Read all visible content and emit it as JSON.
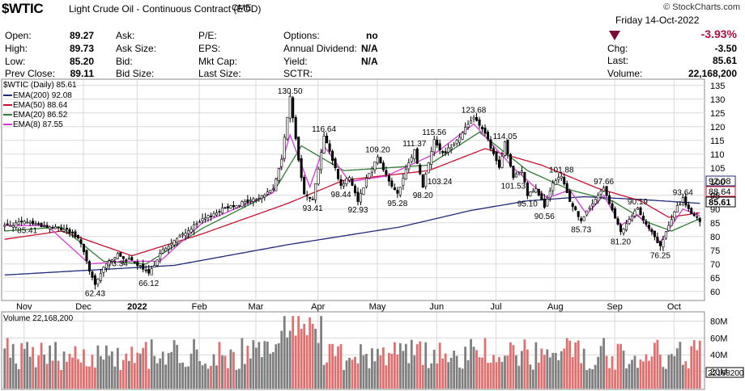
{
  "header": {
    "symbol": "$WTIC",
    "title": "Light Crude Oil - Continuous Contract (EOD)",
    "exchange": "CME",
    "brand": "© StockCharts.com",
    "date": "Friday 14-Oct-2022",
    "change_pct": "-3.93%"
  },
  "quote": {
    "open_label": "Open:",
    "open": "89.27",
    "high_label": "High:",
    "high": "89.73",
    "low_label": "Low:",
    "low": "85.20",
    "prev_label": "Prev Close:",
    "prev": "89.11",
    "ask_label": "Ask:",
    "asksize_label": "Ask Size:",
    "bid_label": "Bid:",
    "bidsize_label": "Bid Size:",
    "pe_label": "P/E:",
    "eps_label": "EPS:",
    "mktcap_label": "Mkt Cap:",
    "lastsize_label": "Last Size:",
    "options_label": "Options:",
    "options": "no",
    "div_label": "Annual Dividend:",
    "div": "N/A",
    "yield_label": "Yield:",
    "yield": "N/A",
    "sctr_label": "SCTR:",
    "chg_label": "Chg:",
    "chg": "-3.50",
    "last_label": "Last:",
    "last": "85.61",
    "volume_label": "Volume:",
    "volume": "22,168,200"
  },
  "legend": {
    "price": "$WTIC (Daily) 85.61",
    "ema200": "EMA(200) 92.08",
    "ema50": "EMA(50) 88.64",
    "ema20": "EMA(20) 86.52",
    "ema8": "EMA(8) 87.55",
    "volume": "Volume 22,168,200"
  },
  "colors": {
    "ema200": "#1f2a7a",
    "ema50": "#c8102e",
    "ema20": "#2e7d32",
    "ema8": "#d63ad6",
    "candle": "#000000",
    "vol_up": "#7f7f7f",
    "vol_down": "#e07070",
    "grid": "#d9d9d9"
  },
  "chart_data": {
    "type": "candlestick",
    "price_axis_ticks": [
      60,
      65,
      70,
      75,
      80,
      85,
      90,
      95,
      100,
      105,
      110,
      115,
      120,
      125,
      130,
      135
    ],
    "ylim": [
      57,
      137
    ],
    "x_tick_labels": [
      "Nov",
      "Dec",
      "2022",
      "Feb",
      "Mar",
      "Apr",
      "May",
      "Jun",
      "Jul",
      "Aug",
      "Sep",
      "Oct"
    ],
    "price_keypoints": [
      [
        0,
        84.0
      ],
      [
        8,
        85.4
      ],
      [
        15,
        83.5
      ],
      [
        22,
        82.5
      ],
      [
        27,
        78.0
      ],
      [
        30,
        67.0
      ],
      [
        32,
        62.43
      ],
      [
        36,
        70.5
      ],
      [
        40,
        73.3
      ],
      [
        45,
        71.0
      ],
      [
        48,
        69.0
      ],
      [
        51,
        66.1
      ],
      [
        55,
        74.0
      ],
      [
        62,
        80.0
      ],
      [
        70,
        86.0
      ],
      [
        78,
        90.5
      ],
      [
        85,
        92.5
      ],
      [
        90,
        94.0
      ],
      [
        95,
        97.5
      ],
      [
        98,
        108.0
      ],
      [
        100,
        124.0
      ],
      [
        101,
        130.5
      ],
      [
        104,
        108.0
      ],
      [
        106,
        96.0
      ],
      [
        109,
        93.4
      ],
      [
        111,
        105.0
      ],
      [
        113,
        116.6
      ],
      [
        116,
        108.0
      ],
      [
        119,
        98.4
      ],
      [
        122,
        102.0
      ],
      [
        125,
        93.0
      ],
      [
        128,
        101.0
      ],
      [
        132,
        109.2
      ],
      [
        136,
        100.0
      ],
      [
        139,
        95.3
      ],
      [
        142,
        104.0
      ],
      [
        145,
        111.4
      ],
      [
        148,
        98.2
      ],
      [
        152,
        115.6
      ],
      [
        155,
        110.0
      ],
      [
        160,
        115.0
      ],
      [
        164,
        121.0
      ],
      [
        166,
        123.7
      ],
      [
        170,
        118.0
      ],
      [
        172,
        112.0
      ],
      [
        175,
        105.0
      ],
      [
        177,
        114.1
      ],
      [
        180,
        101.5
      ],
      [
        183,
        104.0
      ],
      [
        185,
        95.1
      ],
      [
        188,
        98.0
      ],
      [
        191,
        90.6
      ],
      [
        194,
        99.0
      ],
      [
        197,
        101.9
      ],
      [
        200,
        93.0
      ],
      [
        204,
        85.7
      ],
      [
        208,
        92.0
      ],
      [
        212,
        97.7
      ],
      [
        215,
        90.0
      ],
      [
        218,
        81.2
      ],
      [
        221,
        86.0
      ],
      [
        224,
        90.2
      ],
      [
        228,
        83.0
      ],
      [
        232,
        76.3
      ],
      [
        235,
        84.0
      ],
      [
        238,
        91.0
      ],
      [
        240,
        93.6
      ],
      [
        243,
        88.0
      ],
      [
        246,
        85.61
      ]
    ],
    "labeled_points": [
      {
        "label": "85.41",
        "x": 8,
        "y": 85.4
      },
      {
        "label": "62.43",
        "x": 32,
        "y": 62.43
      },
      {
        "label": "73.34",
        "x": 40,
        "y": 73.34
      },
      {
        "label": "66.12",
        "x": 51,
        "y": 66.12
      },
      {
        "label": "130.50",
        "x": 101,
        "y": 130.5
      },
      {
        "label": "93.41",
        "x": 109,
        "y": 93.41
      },
      {
        "label": "116.64",
        "x": 113,
        "y": 116.64
      },
      {
        "label": "98.44",
        "x": 119,
        "y": 98.44
      },
      {
        "label": "92.93",
        "x": 125,
        "y": 92.93
      },
      {
        "label": "109.20",
        "x": 132,
        "y": 109.2
      },
      {
        "label": "95.28",
        "x": 139,
        "y": 95.28
      },
      {
        "label": "111.37",
        "x": 145,
        "y": 111.37
      },
      {
        "label": "98.20",
        "x": 148,
        "y": 98.2
      },
      {
        "label": "115.56",
        "x": 152,
        "y": 115.56
      },
      {
        "label": "103.24",
        "x": 154,
        "y": 103.24
      },
      {
        "label": "123.68",
        "x": 166,
        "y": 123.68
      },
      {
        "label": "114.05",
        "x": 177,
        "y": 114.05
      },
      {
        "label": "101.53",
        "x": 180,
        "y": 101.53
      },
      {
        "label": "95.10",
        "x": 185,
        "y": 95.1
      },
      {
        "label": "90.56",
        "x": 191,
        "y": 90.56
      },
      {
        "label": "101.88",
        "x": 197,
        "y": 101.88
      },
      {
        "label": "85.73",
        "x": 204,
        "y": 85.73
      },
      {
        "label": "97.66",
        "x": 212,
        "y": 97.66
      },
      {
        "label": "81.20",
        "x": 218,
        "y": 81.2
      },
      {
        "label": "90.19",
        "x": 224,
        "y": 90.19
      },
      {
        "label": "76.25",
        "x": 232,
        "y": 76.25
      },
      {
        "label": "93.64",
        "x": 240,
        "y": 93.64
      }
    ],
    "last_value_tags": [
      {
        "label": "92.08",
        "value": 92.08,
        "series": "ema200"
      },
      {
        "label": "88.64",
        "value": 88.64,
        "series": "ema50"
      },
      {
        "label": "85.61",
        "value": 85.61,
        "series": "price"
      }
    ],
    "ema_series": [
      {
        "name": "EMA(200)",
        "key": "ema200",
        "points": [
          [
            0,
            66
          ],
          [
            60,
            69.5
          ],
          [
            100,
            77
          ],
          [
            140,
            83.5
          ],
          [
            165,
            89.5
          ],
          [
            185,
            93
          ],
          [
            205,
            94.5
          ],
          [
            225,
            93.5
          ],
          [
            246,
            92.08
          ]
        ]
      },
      {
        "name": "EMA(50)",
        "key": "ema50",
        "points": [
          [
            0,
            79
          ],
          [
            20,
            82
          ],
          [
            45,
            73
          ],
          [
            70,
            81
          ],
          [
            100,
            92
          ],
          [
            120,
            100.5
          ],
          [
            150,
            104
          ],
          [
            170,
            112
          ],
          [
            190,
            106
          ],
          [
            210,
            97.5
          ],
          [
            225,
            93
          ],
          [
            235,
            87
          ],
          [
            246,
            88.64
          ]
        ]
      },
      {
        "name": "EMA(20)",
        "key": "ema20",
        "points": [
          [
            0,
            82
          ],
          [
            20,
            83.5
          ],
          [
            35,
            71
          ],
          [
            50,
            70
          ],
          [
            70,
            83
          ],
          [
            95,
            96
          ],
          [
            105,
            113
          ],
          [
            120,
            104
          ],
          [
            150,
            106
          ],
          [
            168,
            118
          ],
          [
            185,
            104
          ],
          [
            200,
            97
          ],
          [
            215,
            93
          ],
          [
            228,
            85
          ],
          [
            236,
            82
          ],
          [
            246,
            86.52
          ]
        ]
      },
      {
        "name": "EMA(8)",
        "key": "ema8",
        "points": [
          [
            0,
            84
          ],
          [
            15,
            84
          ],
          [
            30,
            70
          ],
          [
            42,
            71
          ],
          [
            55,
            71
          ],
          [
            70,
            85
          ],
          [
            95,
            96
          ],
          [
            101,
            117
          ],
          [
            108,
            98
          ],
          [
            113,
            113
          ],
          [
            122,
            100
          ],
          [
            135,
            102
          ],
          [
            152,
            110
          ],
          [
            166,
            121
          ],
          [
            180,
            105
          ],
          [
            192,
            94
          ],
          [
            200,
            97
          ],
          [
            206,
            88
          ],
          [
            212,
            95
          ],
          [
            218,
            84
          ],
          [
            224,
            88
          ],
          [
            232,
            78
          ],
          [
            240,
            90
          ],
          [
            246,
            87.55
          ]
        ]
      }
    ],
    "volume_axis_ticks": [
      "20M",
      "40M",
      "60M",
      "80M"
    ],
    "volume_ylim": [
      0,
      90
    ],
    "volume_last_label": "22168200",
    "volume_units": "M"
  }
}
